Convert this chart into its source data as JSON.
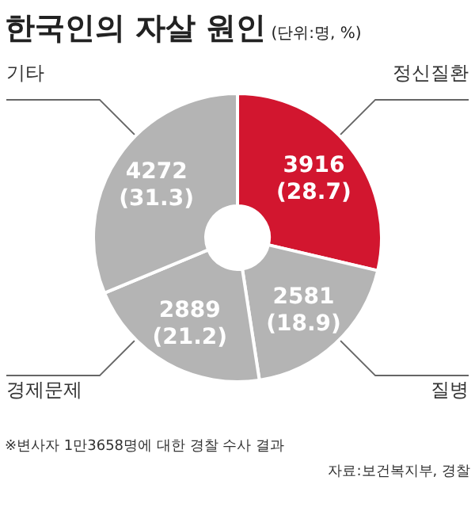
{
  "chart_data": {
    "type": "donut",
    "title": "한국인의 자살 원인",
    "subtitle": "(단위:명, %)",
    "categories": [
      "정신질환",
      "질병",
      "경제문제",
      "기타"
    ],
    "values": [
      3916,
      2581,
      2889,
      4272
    ],
    "colors": [
      "#d2162f",
      "#b4b4b4",
      "#b4b4b4",
      "#b4b4b4"
    ],
    "value_labels": [
      "3916\n(28.7)",
      "2581\n(18.9)",
      "2889\n(21.2)",
      "4272\n(31.3)"
    ],
    "annotations": [
      "※변사자 1만3658명에 대한 경찰 수사 결과",
      "자료:보건복지부, 경찰"
    ]
  }
}
